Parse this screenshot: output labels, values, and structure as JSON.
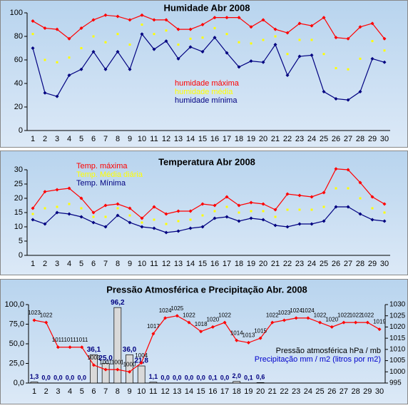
{
  "chart_data": [
    {
      "type": "line",
      "title": "Humidade Abr 2008",
      "categories": [
        "1",
        "2",
        "3",
        "4",
        "5",
        "6",
        "7",
        "8",
        "9",
        "10",
        "11",
        "12",
        "13",
        "14",
        "15",
        "16",
        "17",
        "18",
        "19",
        "20",
        "21",
        "22",
        "23",
        "24",
        "25",
        "26",
        "27",
        "28",
        "29",
        "30"
      ],
      "ylim": [
        0,
        100
      ],
      "yticks": [
        0,
        20,
        40,
        60,
        80,
        100
      ],
      "series": [
        {
          "name": "humidade máxima",
          "color": "#ff0000",
          "line": true,
          "values": [
            93,
            87,
            86,
            78,
            87,
            94,
            98,
            97,
            94,
            98,
            94,
            94,
            86,
            86,
            90,
            96,
            96,
            96,
            88,
            94,
            86,
            83,
            91,
            89,
            96,
            79,
            78,
            88,
            91,
            78
          ]
        },
        {
          "name": "humidade média",
          "color": "#ffff00",
          "line": false,
          "values": [
            82,
            60,
            58,
            62,
            70,
            80,
            75,
            82,
            73,
            90,
            82,
            85,
            73,
            78,
            79,
            87,
            82,
            75,
            74,
            77,
            80,
            65,
            77,
            77,
            65,
            53,
            52,
            61,
            76,
            68
          ]
        },
        {
          "name": "humidade mínima",
          "color": "#000080",
          "line": true,
          "values": [
            70,
            32,
            29,
            47,
            52,
            67,
            52,
            67,
            52,
            82,
            69,
            76,
            61,
            71,
            67,
            79,
            66,
            54,
            59,
            58,
            73,
            47,
            63,
            64,
            33,
            27,
            26,
            33,
            61,
            58
          ]
        }
      ]
    },
    {
      "type": "line",
      "title": "Temperatura Abr 2008",
      "categories": [
        "1",
        "2",
        "3",
        "4",
        "5",
        "6",
        "7",
        "8",
        "9",
        "10",
        "11",
        "12",
        "13",
        "14",
        "15",
        "16",
        "17",
        "18",
        "19",
        "20",
        "21",
        "22",
        "23",
        "24",
        "25",
        "26",
        "27",
        "28",
        "29",
        "30"
      ],
      "ylim": [
        0,
        30
      ],
      "yticks": [
        0,
        5,
        10,
        15,
        20,
        25,
        30
      ],
      "series": [
        {
          "name": "Temp. máxima",
          "color": "#ff0000",
          "line": true,
          "values": [
            16.5,
            22.3,
            23,
            23.5,
            20,
            15,
            17.5,
            18,
            16.5,
            13,
            17,
            14.5,
            15.5,
            15.5,
            18,
            17.5,
            20.5,
            17.5,
            18.5,
            18,
            16,
            21.5,
            21,
            20.5,
            22,
            30.3,
            30,
            25.5,
            20.5,
            18
          ]
        },
        {
          "name": "Temp. Média diária",
          "color": "#ffff00",
          "line": false,
          "values": [
            14.5,
            16.5,
            17,
            18,
            16.5,
            13.5,
            13.5,
            16.5,
            14,
            11.5,
            12.5,
            11,
            12,
            12.5,
            14,
            15.5,
            17,
            15,
            15.5,
            15.5,
            13.5,
            16,
            16,
            16,
            17,
            23.5,
            23.5,
            20,
            16.5,
            15
          ]
        },
        {
          "name": "Temp. Mínima",
          "color": "#000080",
          "line": true,
          "values": [
            12.5,
            11,
            15,
            14.5,
            13.5,
            11.5,
            10,
            14,
            11.5,
            10,
            9.5,
            8,
            8.5,
            9.5,
            10,
            13,
            13.5,
            12,
            13,
            12.5,
            10.5,
            10,
            11,
            11,
            12,
            17,
            17,
            14.5,
            12.5,
            12
          ]
        }
      ]
    },
    {
      "type": "combo",
      "title": "Pressão Atmosférica e Precipitação Abr. 2008",
      "categories": [
        "1",
        "2",
        "3",
        "4",
        "5",
        "6",
        "7",
        "8",
        "9",
        "10",
        "11",
        "12",
        "13",
        "14",
        "15",
        "16",
        "17",
        "18",
        "19",
        "20",
        "21",
        "22",
        "23",
        "24",
        "25",
        "26",
        "27",
        "28",
        "29",
        "30"
      ],
      "ylim": [
        0,
        100
      ],
      "yticks": [
        {
          "value": 0,
          "label": "0,0"
        },
        {
          "value": 25,
          "label": "25,0"
        },
        {
          "value": 50,
          "label": "50,0"
        },
        {
          "value": 75,
          "label": "75,0"
        },
        {
          "value": 100,
          "label": "100,0"
        }
      ],
      "y2lim": [
        995,
        1030
      ],
      "y2ticks": [
        995,
        1000,
        1005,
        1010,
        1015,
        1020,
        1025,
        1030
      ],
      "series": [
        {
          "name": "Pressão atmosférica hPa / mb",
          "color": "#ff0000",
          "label_color": "#000000",
          "axis": "y2",
          "line": true,
          "values": [
            1023,
            1022,
            1011,
            1011,
            1011,
            1003,
            1001,
            1001,
            1000,
            1004,
            1017,
            1024,
            1025,
            1022,
            1018,
            1020,
            1022,
            1014,
            1013,
            1015,
            1022,
            1023,
            1024,
            1024,
            1022,
            1020,
            1022,
            1022,
            1022,
            1019
          ]
        },
        {
          "name": "Precipitação mm / m2 (litros por m2)",
          "color": "#d9d9d9",
          "label_color": "#0000cc",
          "kind": "bar",
          "values": [
            1.3,
            0,
            0,
            0,
            0,
            36.1,
            25.0,
            96.2,
            36.0,
            21.8,
            1.1,
            0,
            0,
            0,
            0,
            0.1,
            0,
            2.0,
            0.1,
            0.6,
            0,
            0,
            0,
            0,
            0,
            0,
            0,
            0,
            0,
            0
          ],
          "value_labels": [
            "1,3",
            "0,0",
            "0,0",
            "0,0",
            "0,0",
            "36,1",
            "25,0",
            "96,2",
            "36,0",
            "21,8",
            "1,1",
            "0,0",
            "0,0",
            "0,0",
            "0,0",
            "0,1",
            "0,0",
            "2,0",
            "0,1",
            "0,6",
            null,
            null,
            null,
            null,
            null,
            null,
            null,
            null,
            null,
            null
          ]
        }
      ]
    }
  ]
}
